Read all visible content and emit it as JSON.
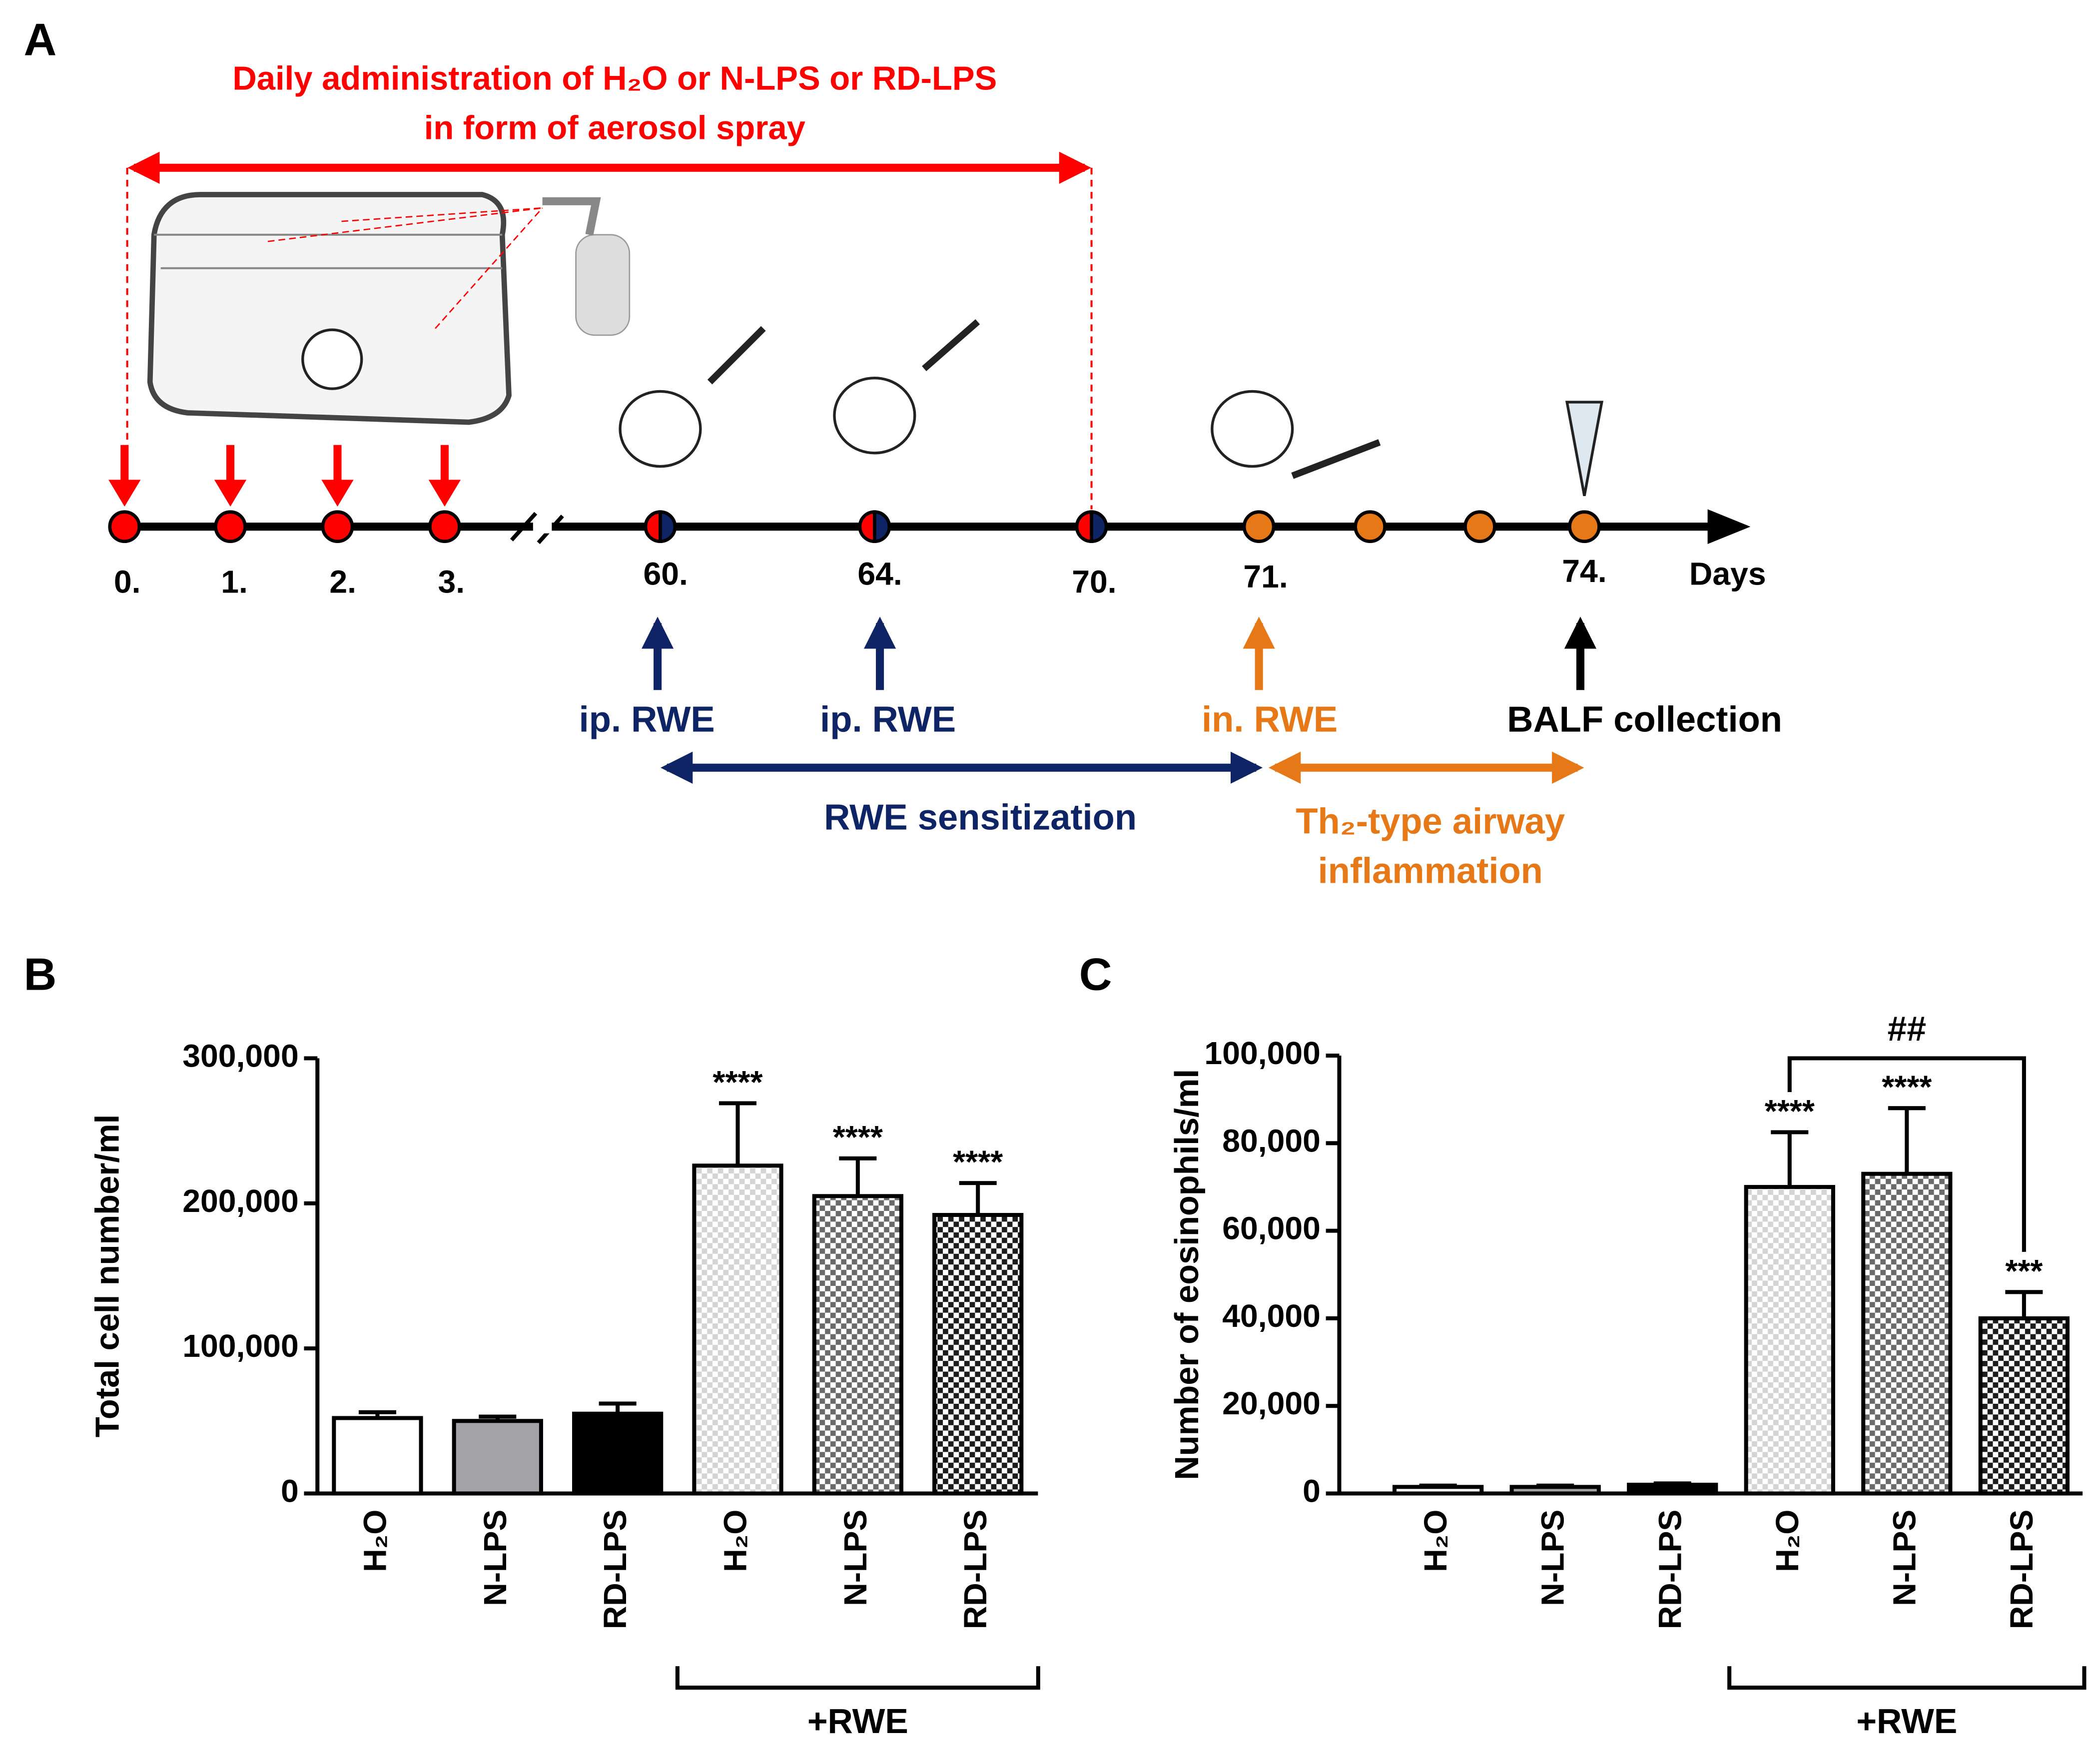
{
  "panel_a": {
    "label": "A",
    "title_lines": [
      "Daily administration of H₂O or N-LPS or RD-LPS",
      "in form of aerosol spray"
    ],
    "timeline": {
      "days": [
        "0.",
        "1.",
        "2.",
        "3.",
        "60.",
        "64.",
        "70.",
        "71.",
        "74."
      ],
      "axis_label": "Days"
    },
    "events": [
      "ip. RWE",
      "ip. RWE",
      "in. RWE",
      "BALF collection"
    ],
    "phases": [
      {
        "lines": [
          "RWE sensitization"
        ]
      },
      {
        "lines": [
          "Th₂-type airway",
          "inflammation"
        ]
      }
    ]
  },
  "chart_data": [
    {
      "type": "bar",
      "panel_label": "B",
      "y_label": "Total cell number/ml",
      "categories": [
        "H₂O",
        "N-LPS",
        "RD-LPS",
        "H₂O",
        "N-LPS",
        "RD-LPS"
      ],
      "values": [
        52000,
        50000,
        55000,
        226000,
        205000,
        192000
      ],
      "errors": [
        4000,
        3000,
        7000,
        43000,
        26000,
        22000
      ],
      "annotations": [
        null,
        null,
        null,
        "****",
        "****",
        "****"
      ],
      "colors": [
        "#ffffff",
        "#a3a3a7",
        "#000000",
        "#d4d4d4",
        "#6a6a6a",
        "#1c1c1c"
      ],
      "checkered": [
        false,
        false,
        false,
        true,
        true,
        true
      ],
      "group": {
        "label": "+RWE",
        "categories": [
          3,
          5
        ]
      },
      "ylim": [
        0,
        300000
      ],
      "yticks": [
        0,
        {
          "value": 100000,
          "label": "100,000"
        },
        {
          "value": 200000,
          "label": "200,000"
        },
        {
          "value": 300000,
          "label": "300,000"
        }
      ]
    },
    {
      "type": "bar",
      "panel_label": "C",
      "y_label": "Number of eosinophils/ml",
      "categories": [
        "H₂O",
        "N-LPS",
        "RD-LPS",
        "H₂O",
        "N-LPS",
        "RD-LPS"
      ],
      "values": [
        1500,
        1500,
        2000,
        70000,
        73000,
        40000
      ],
      "errors": [
        300,
        300,
        300,
        12500,
        15000,
        6000
      ],
      "annotations": [
        null,
        null,
        null,
        "****",
        "****",
        "***"
      ],
      "colors": [
        "#ffffff",
        "#a3a3a7",
        "#000000",
        "#d4d4d4",
        "#6a6a6a",
        "#1c1c1c"
      ],
      "checkered": [
        false,
        false,
        false,
        true,
        true,
        true
      ],
      "group": {
        "label": "+RWE",
        "categories": [
          3,
          5
        ]
      },
      "comparison": {
        "label": "##",
        "between": [
          3,
          5
        ]
      },
      "ylim": [
        0,
        100000
      ],
      "yticks": [
        0,
        {
          "value": 20000,
          "label": "20,000"
        },
        {
          "value": 40000,
          "label": "40,000"
        },
        {
          "value": 60000,
          "label": "60,000"
        },
        {
          "value": 80000,
          "label": "80,000"
        },
        {
          "value": 100000,
          "label": "100,000"
        }
      ]
    }
  ]
}
